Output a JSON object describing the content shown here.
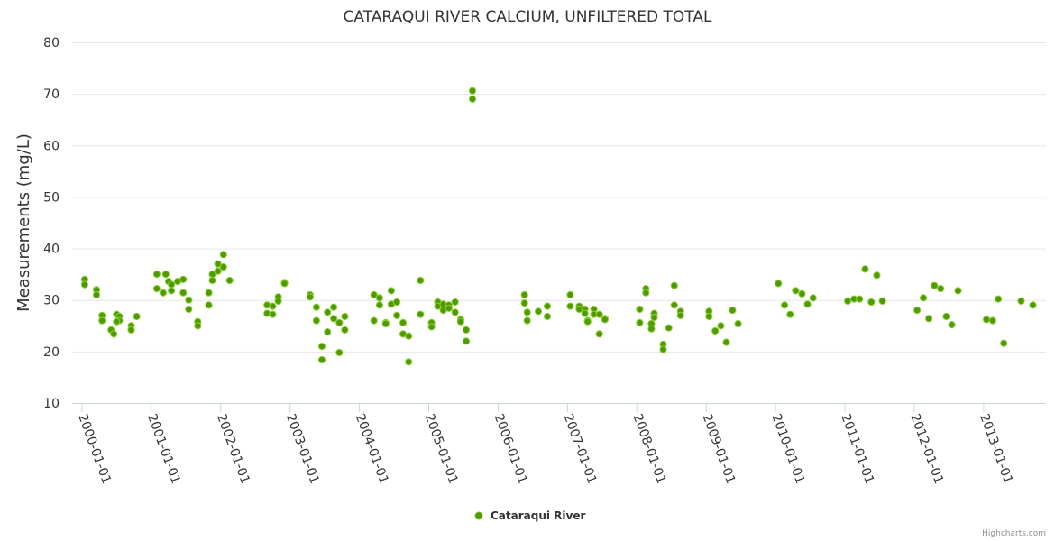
{
  "chart_data": {
    "type": "scatter",
    "title": "CATARAQUI RIVER CALCIUM, UNFILTERED TOTAL",
    "xlabel": "",
    "ylabel": "Measurements (mg/L)",
    "ylim": [
      10,
      80
    ],
    "yticks": [
      10,
      20,
      30,
      40,
      50,
      60,
      70,
      80
    ],
    "xlim": [
      1999.95,
      2013.95
    ],
    "xticks": [
      {
        "v": 2000,
        "label": "2000-01-01"
      },
      {
        "v": 2001,
        "label": "2001-01-01"
      },
      {
        "v": 2002,
        "label": "2002-01-01"
      },
      {
        "v": 2003,
        "label": "2003-01-01"
      },
      {
        "v": 2004,
        "label": "2004-01-01"
      },
      {
        "v": 2005,
        "label": "2005-01-01"
      },
      {
        "v": 2006,
        "label": "2006-01-01"
      },
      {
        "v": 2007,
        "label": "2007-01-01"
      },
      {
        "v": 2008,
        "label": "2008-01-01"
      },
      {
        "v": 2009,
        "label": "2009-01-01"
      },
      {
        "v": 2010,
        "label": "2010-01-01"
      },
      {
        "v": 2011,
        "label": "2011-01-01"
      },
      {
        "v": 2012,
        "label": "2012-01-01"
      },
      {
        "v": 2013,
        "label": "2013-01-01"
      }
    ],
    "grid": true,
    "legend_position": "bottom-center",
    "color": "#4f9a00",
    "series": [
      {
        "name": "Cataraqui River",
        "points": [
          [
            2000.04,
            34.0
          ],
          [
            2000.04,
            33.0
          ],
          [
            2000.21,
            32.0
          ],
          [
            2000.21,
            31.0
          ],
          [
            2000.29,
            27.0
          ],
          [
            2000.29,
            26.0
          ],
          [
            2000.42,
            24.2
          ],
          [
            2000.46,
            23.4
          ],
          [
            2000.5,
            27.2
          ],
          [
            2000.54,
            26.8
          ],
          [
            2000.54,
            26.0
          ],
          [
            2000.5,
            25.8
          ],
          [
            2000.71,
            25.0
          ],
          [
            2000.71,
            24.2
          ],
          [
            2000.79,
            26.8
          ],
          [
            2001.08,
            35.0
          ],
          [
            2001.08,
            32.2
          ],
          [
            2001.17,
            31.4
          ],
          [
            2001.21,
            35.0
          ],
          [
            2001.25,
            33.6
          ],
          [
            2001.29,
            33.0
          ],
          [
            2001.29,
            31.8
          ],
          [
            2001.38,
            33.6
          ],
          [
            2001.46,
            34.0
          ],
          [
            2001.46,
            31.4
          ],
          [
            2001.54,
            30.0
          ],
          [
            2001.54,
            28.2
          ],
          [
            2001.67,
            25.8
          ],
          [
            2001.67,
            25.0
          ],
          [
            2001.83,
            31.4
          ],
          [
            2001.83,
            29.0
          ],
          [
            2001.88,
            35.0
          ],
          [
            2001.88,
            33.8
          ],
          [
            2001.96,
            35.6
          ],
          [
            2001.96,
            37.0
          ],
          [
            2002.04,
            36.4
          ],
          [
            2002.04,
            38.8
          ],
          [
            2002.13,
            33.8
          ],
          [
            2002.67,
            29.0
          ],
          [
            2002.67,
            27.4
          ],
          [
            2002.75,
            28.8
          ],
          [
            2002.75,
            27.2
          ],
          [
            2002.83,
            30.6
          ],
          [
            2002.83,
            29.8
          ],
          [
            2002.92,
            33.4
          ],
          [
            2002.92,
            33.2
          ],
          [
            2003.29,
            31.0
          ],
          [
            2003.29,
            30.6
          ],
          [
            2003.38,
            28.6
          ],
          [
            2003.38,
            26.0
          ],
          [
            2003.46,
            21.0
          ],
          [
            2003.46,
            18.4
          ],
          [
            2003.54,
            27.6
          ],
          [
            2003.54,
            23.8
          ],
          [
            2003.63,
            28.6
          ],
          [
            2003.63,
            26.4
          ],
          [
            2003.71,
            25.6
          ],
          [
            2003.71,
            19.8
          ],
          [
            2003.79,
            26.8
          ],
          [
            2003.79,
            24.2
          ],
          [
            2004.21,
            31.0
          ],
          [
            2004.21,
            26.0
          ],
          [
            2004.29,
            30.4
          ],
          [
            2004.29,
            29.0
          ],
          [
            2004.38,
            25.6
          ],
          [
            2004.38,
            25.4
          ],
          [
            2004.46,
            31.8
          ],
          [
            2004.46,
            29.2
          ],
          [
            2004.54,
            29.6
          ],
          [
            2004.54,
            27.0
          ],
          [
            2004.63,
            25.6
          ],
          [
            2004.63,
            23.4
          ],
          [
            2004.71,
            23.0
          ],
          [
            2004.71,
            18.0
          ],
          [
            2004.88,
            33.8
          ],
          [
            2004.88,
            27.2
          ],
          [
            2005.04,
            25.6
          ],
          [
            2005.04,
            24.8
          ],
          [
            2005.13,
            29.6
          ],
          [
            2005.13,
            28.8
          ],
          [
            2005.21,
            29.2
          ],
          [
            2005.21,
            28.0
          ],
          [
            2005.29,
            29.0
          ],
          [
            2005.29,
            28.4
          ],
          [
            2005.38,
            29.6
          ],
          [
            2005.38,
            27.6
          ],
          [
            2005.46,
            26.2
          ],
          [
            2005.46,
            25.8
          ],
          [
            2005.54,
            24.2
          ],
          [
            2005.54,
            22.0
          ],
          [
            2005.63,
            70.6
          ],
          [
            2005.63,
            69.0
          ],
          [
            2006.38,
            31.0
          ],
          [
            2006.38,
            29.4
          ],
          [
            2006.42,
            27.6
          ],
          [
            2006.42,
            26.0
          ],
          [
            2006.58,
            27.8
          ],
          [
            2006.71,
            28.8
          ],
          [
            2006.71,
            26.8
          ],
          [
            2007.04,
            31.0
          ],
          [
            2007.04,
            28.8
          ],
          [
            2007.17,
            28.8
          ],
          [
            2007.17,
            28.2
          ],
          [
            2007.25,
            28.2
          ],
          [
            2007.25,
            27.4
          ],
          [
            2007.29,
            26.0
          ],
          [
            2007.29,
            25.8
          ],
          [
            2007.38,
            28.2
          ],
          [
            2007.38,
            27.2
          ],
          [
            2007.46,
            27.2
          ],
          [
            2007.46,
            23.4
          ],
          [
            2007.54,
            26.4
          ],
          [
            2007.54,
            26.2
          ],
          [
            2008.04,
            28.2
          ],
          [
            2008.04,
            25.6
          ],
          [
            2008.13,
            32.2
          ],
          [
            2008.13,
            31.4
          ],
          [
            2008.21,
            25.4
          ],
          [
            2008.21,
            24.4
          ],
          [
            2008.25,
            27.4
          ],
          [
            2008.25,
            26.6
          ],
          [
            2008.38,
            21.4
          ],
          [
            2008.38,
            20.4
          ],
          [
            2008.46,
            24.6
          ],
          [
            2008.54,
            32.8
          ],
          [
            2008.54,
            29.0
          ],
          [
            2008.63,
            27.8
          ],
          [
            2008.63,
            27.0
          ],
          [
            2009.04,
            27.8
          ],
          [
            2009.04,
            26.8
          ],
          [
            2009.13,
            24.0
          ],
          [
            2009.21,
            25.0
          ],
          [
            2009.29,
            21.8
          ],
          [
            2009.38,
            28.0
          ],
          [
            2009.46,
            25.4
          ],
          [
            2010.04,
            33.2
          ],
          [
            2010.13,
            29.0
          ],
          [
            2010.21,
            27.2
          ],
          [
            2010.29,
            31.8
          ],
          [
            2010.38,
            31.2
          ],
          [
            2010.46,
            29.2
          ],
          [
            2010.54,
            30.4
          ],
          [
            2011.04,
            29.8
          ],
          [
            2011.13,
            30.2
          ],
          [
            2011.21,
            30.2
          ],
          [
            2011.29,
            36.0
          ],
          [
            2011.38,
            29.6
          ],
          [
            2011.46,
            34.8
          ],
          [
            2011.54,
            29.8
          ],
          [
            2012.04,
            28.0
          ],
          [
            2012.13,
            30.4
          ],
          [
            2012.21,
            26.4
          ],
          [
            2012.29,
            32.8
          ],
          [
            2012.38,
            32.2
          ],
          [
            2012.46,
            26.8
          ],
          [
            2012.54,
            25.2
          ],
          [
            2012.63,
            31.8
          ],
          [
            2013.04,
            26.2
          ],
          [
            2013.13,
            26.0
          ],
          [
            2013.21,
            30.2
          ],
          [
            2013.29,
            21.6
          ],
          [
            2013.54,
            29.8
          ],
          [
            2013.71,
            29.0
          ]
        ]
      }
    ]
  },
  "credits": "Highcharts.com"
}
